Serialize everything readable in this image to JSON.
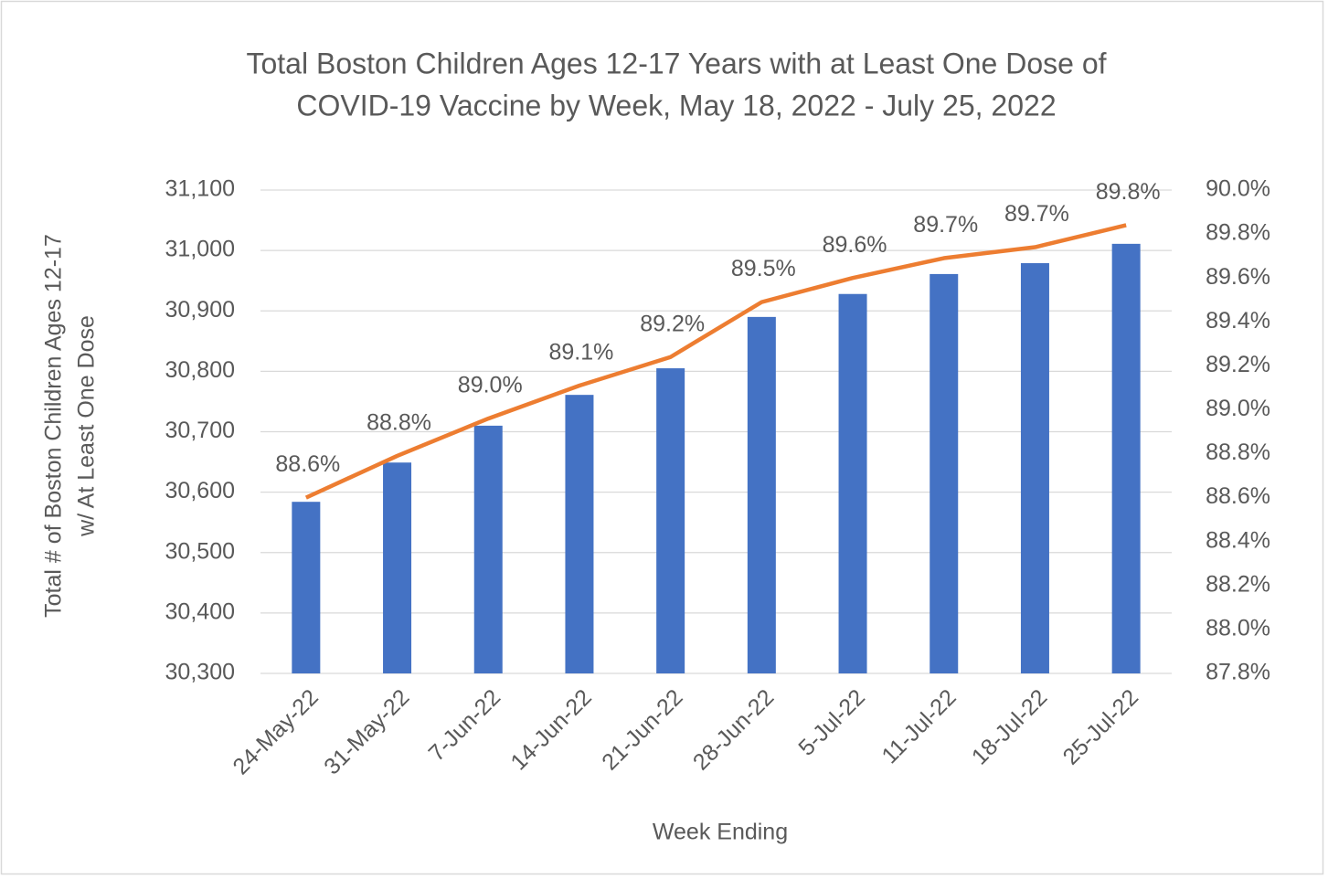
{
  "chart_data": {
    "type": "bar_line",
    "title": [
      "Total Boston Children Ages 12-17 Years with at Least One Dose of",
      "COVID-19 Vaccine by Week, May 18, 2022 - July 25, 2022"
    ],
    "xlabel": "Week Ending",
    "ylabel": [
      "Total # of Boston Children  Ages 12-17",
      "w/ At Least One Dose"
    ],
    "categories": [
      "24-May-22",
      "31-May-22",
      "7-Jun-22",
      "14-Jun-22",
      "21-Jun-22",
      "28-Jun-22",
      "5-Jul-22",
      "11-Jul-22",
      "18-Jul-22",
      "25-Jul-22"
    ],
    "series": [
      {
        "type": "bar",
        "color": "#4472c4",
        "values": [
          30584,
          30649,
          30710,
          30761,
          30805,
          30890,
          30928,
          30961,
          30979,
          31011
        ]
      },
      {
        "type": "line",
        "axis": "y2",
        "color": "#ed7d31",
        "values": [
          88.6,
          88.79,
          88.96,
          89.11,
          89.24,
          89.49,
          89.6,
          89.69,
          89.74,
          89.84
        ],
        "value_labels": [
          "88.6%",
          "88.8%",
          "89.0%",
          "89.1%",
          "89.2%",
          "89.5%",
          "89.6%",
          "89.7%",
          "89.7%",
          "89.8%"
        ]
      }
    ],
    "ylim": [
      30300,
      31100
    ],
    "yticks": [
      {
        "value": 30300,
        "label": "30,300"
      },
      {
        "value": 30400,
        "label": "30,400"
      },
      {
        "value": 30500,
        "label": "30,500"
      },
      {
        "value": 30600,
        "label": "30,600"
      },
      {
        "value": 30700,
        "label": "30,700"
      },
      {
        "value": 30800,
        "label": "30,800"
      },
      {
        "value": 30900,
        "label": "30,900"
      },
      {
        "value": 31000,
        "label": "31,000"
      },
      {
        "value": 31100,
        "label": "31,100"
      }
    ],
    "y2lim": [
      87.8,
      90.0
    ],
    "y2ticks": [
      {
        "value": 87.8,
        "label": "87.8%"
      },
      {
        "value": 88.0,
        "label": "88.0%"
      },
      {
        "value": 88.2,
        "label": "88.2%"
      },
      {
        "value": 88.4,
        "label": "88.4%"
      },
      {
        "value": 88.6,
        "label": "88.6%"
      },
      {
        "value": 88.8,
        "label": "88.8%"
      },
      {
        "value": 89.0,
        "label": "89.0%"
      },
      {
        "value": 89.2,
        "label": "89.2%"
      },
      {
        "value": 89.4,
        "label": "89.4%"
      },
      {
        "value": 89.6,
        "label": "89.6%"
      },
      {
        "value": 89.8,
        "label": "89.8%"
      },
      {
        "value": 90.0,
        "label": "90.0%"
      }
    ],
    "grid": true
  }
}
